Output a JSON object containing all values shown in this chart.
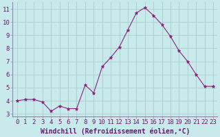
{
  "x": [
    0,
    1,
    2,
    3,
    4,
    5,
    6,
    7,
    8,
    9,
    10,
    11,
    12,
    13,
    14,
    15,
    16,
    17,
    18,
    19,
    20,
    21,
    22,
    23
  ],
  "y": [
    4.0,
    4.1,
    4.1,
    3.9,
    3.2,
    3.6,
    3.4,
    3.4,
    5.2,
    4.6,
    6.6,
    7.3,
    8.1,
    9.4,
    10.7,
    11.1,
    10.5,
    9.8,
    8.9,
    7.8,
    7.0,
    6.0,
    5.1,
    5.1
  ],
  "line_color": "#8b2080",
  "marker": "*",
  "background_color": "#c8eaea",
  "grid_color": "#a8cccc",
  "axis_label_color": "#6b1870",
  "tick_label_color": "#6b1870",
  "xlabel": "Windchill (Refroidissement éolien,°C)",
  "ylim": [
    2.8,
    11.5
  ],
  "xlim": [
    -0.5,
    23.5
  ],
  "yticks": [
    3,
    4,
    5,
    6,
    7,
    8,
    9,
    10,
    11
  ],
  "xticks": [
    0,
    1,
    2,
    3,
    4,
    5,
    6,
    7,
    8,
    9,
    10,
    11,
    12,
    13,
    14,
    15,
    16,
    17,
    18,
    19,
    20,
    21,
    22,
    23
  ],
  "font_size": 6.5,
  "label_font_size": 7.0,
  "spine_color": "#8888aa",
  "figwidth": 3.2,
  "figheight": 2.0,
  "dpi": 100
}
